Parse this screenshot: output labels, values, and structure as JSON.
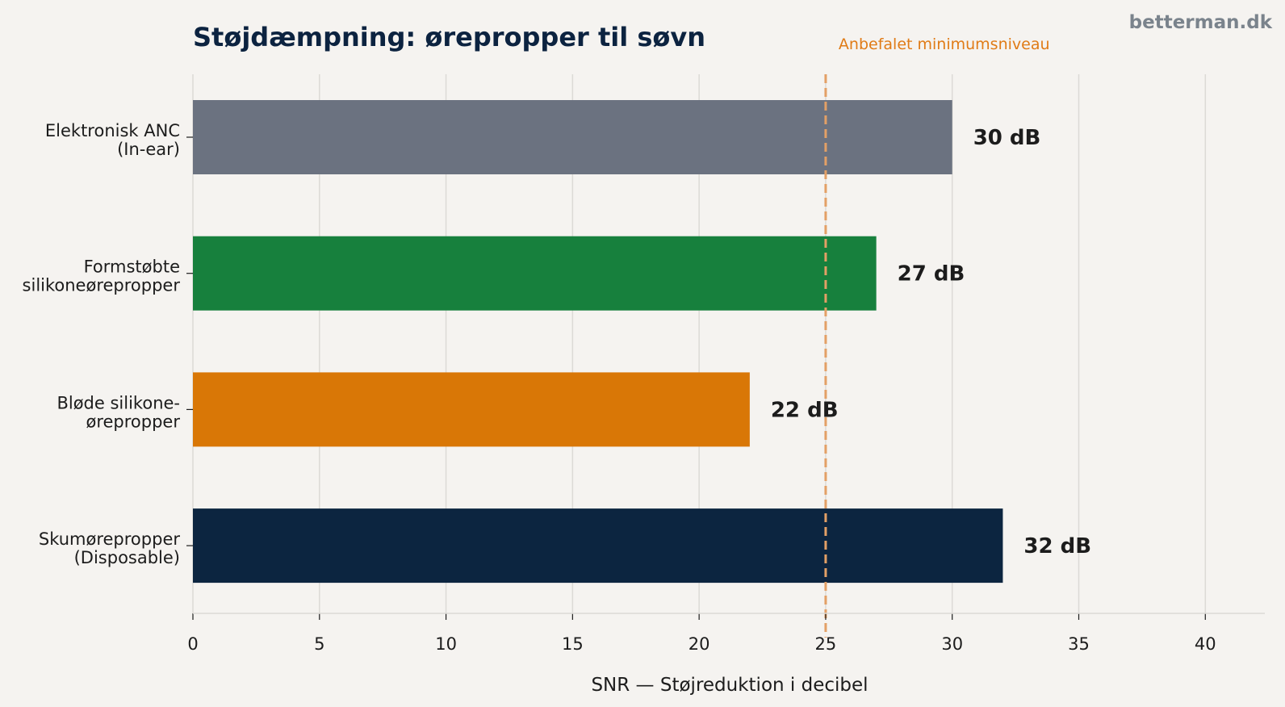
{
  "header": {
    "title": "Støjdæmpning: ørepropper til søvn",
    "brand": "betterman.dk"
  },
  "chart_data": {
    "type": "bar",
    "orientation": "horizontal",
    "title": "Støjdæmpning: ørepropper til søvn",
    "xlabel": "SNR — Støjreduktion i decibel",
    "ylabel": "",
    "xlim": [
      0,
      42
    ],
    "xticks": [
      0,
      5,
      10,
      15,
      20,
      25,
      30,
      35,
      40
    ],
    "grid": "vertical",
    "categories": [
      [
        "Elektronisk ANC",
        "(In-ear)"
      ],
      [
        "Formstøbte",
        "silikoneørepropper"
      ],
      [
        "Bløde silikone-",
        "ørepropper"
      ],
      [
        "Skumørepropper",
        "(Disposable)"
      ]
    ],
    "values": [
      30,
      27,
      22,
      32
    ],
    "value_labels": [
      "30 dB",
      "27 dB",
      "22 dB",
      "32 dB"
    ],
    "colors": [
      "#6b7280",
      "#17803d",
      "#d97706",
      "#0c2540"
    ],
    "reference_line": {
      "value": 25,
      "label": "Anbefalet minimumsniveau",
      "color": "#e3a066"
    }
  }
}
